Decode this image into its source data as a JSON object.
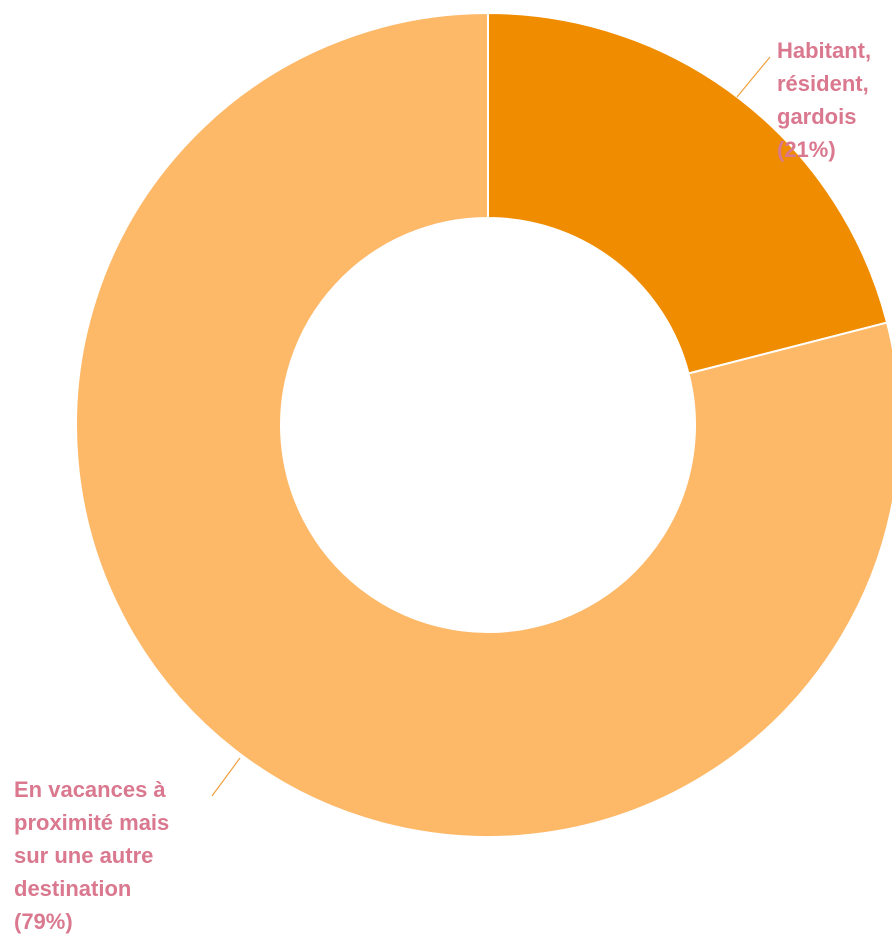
{
  "chart_data": {
    "type": "pie",
    "style": "donut",
    "start_angle_deg": 0,
    "direction": "clockwise",
    "colors": {
      "slice_separator": "#ffffff",
      "leader_line": "#f0a040",
      "label_text": "#d9788e"
    },
    "slices": [
      {
        "name": "Habitant, résident, gardois",
        "percent_label": "(21%)",
        "value": 21,
        "color": "#f08c00",
        "label_lines": [
          "Habitant,",
          "résident,",
          "gardois",
          "(21%)"
        ]
      },
      {
        "name": "En vacances à proximité mais sur une autre destination",
        "percent_label": "(79%)",
        "value": 79,
        "color": "#fdb868",
        "label_lines": [
          "En vacances à",
          "proximité mais",
          "sur une autre",
          "destination",
          "(79%)"
        ]
      }
    ]
  }
}
